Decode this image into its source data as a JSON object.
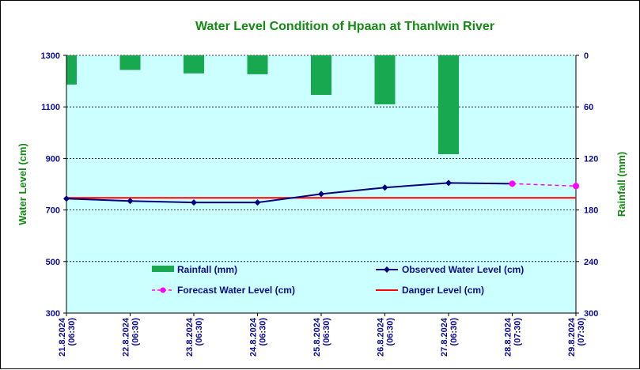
{
  "chart_data": {
    "type": "line",
    "title": "Water Level Condition of Hpaan at Thanlwin River",
    "ylabel": "Water Level (cm)",
    "y2label": "Rainfall (mm)",
    "ylim": [
      300,
      1300
    ],
    "yticks": [
      300,
      500,
      700,
      900,
      1100,
      1300
    ],
    "y2lim": [
      0,
      300
    ],
    "y2ticks": [
      0,
      60,
      120,
      180,
      240,
      300
    ],
    "y2_inverted": true,
    "grid": "horizontal dashed",
    "categories": [
      [
        "21.8.2024",
        "(06:30)"
      ],
      [
        "22.8.2024",
        "(06:30)"
      ],
      [
        "23.8.2024",
        "(06:30)"
      ],
      [
        "24.8.2024",
        "(06:30)"
      ],
      [
        "25.8.2024",
        "(06:30)"
      ],
      [
        "26.8.2024",
        "(06:30)"
      ],
      [
        "27.8.2024",
        "(06:30)"
      ],
      [
        "28.8.2024",
        "(07:30)"
      ],
      [
        "29.8.2024",
        "(07:30)"
      ]
    ],
    "rainfall": {
      "name": "Rainfall (mm)",
      "color": "#18a850",
      "values": [
        34,
        17,
        21,
        22,
        46,
        57,
        115
      ]
    },
    "observed": {
      "name": "Observed Water Level (cm)",
      "color": "#000080",
      "values": [
        744,
        735,
        729,
        729,
        762,
        787,
        805,
        802
      ]
    },
    "forecast": {
      "name": "Forecast Water Level (cm)",
      "color": "#ff00ff",
      "x_index_start": 7,
      "values": [
        802,
        793
      ]
    },
    "danger": {
      "name": "Danger Level (cm)",
      "color": "#ff0000",
      "value": 747
    },
    "plot_background": "#ccffff"
  }
}
